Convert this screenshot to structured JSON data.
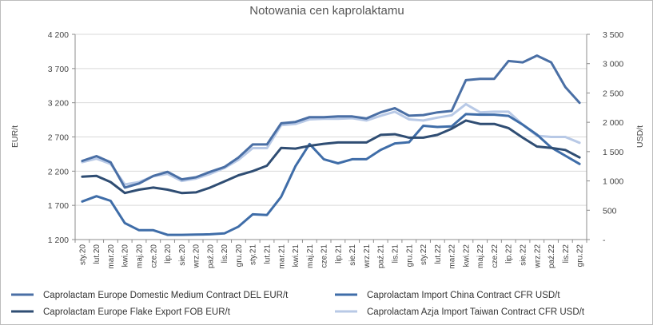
{
  "chart_data": {
    "type": "line",
    "title": "Notowania cen kaprolaktamu",
    "ylabel_left": "EUR/t",
    "ylabel_right": "USD/t",
    "ylim_left": [
      1200,
      4200
    ],
    "yticks_left": [
      "1 200",
      "1 700",
      "2 200",
      "2 700",
      "3 200",
      "3 700",
      "4 200"
    ],
    "ylim_right": [
      0,
      3500
    ],
    "yticks_right": [
      "-",
      "500",
      "1 000",
      "1 500",
      "2 000",
      "2 500",
      "3 000",
      "3 500"
    ],
    "categories": [
      "sty.20",
      "lut.20",
      "mar.20",
      "kwi.20",
      "maj.20",
      "cze.20",
      "lip.20",
      "sie.20",
      "wrz.20",
      "paź.20",
      "lis.20",
      "gru.20",
      "sty.21",
      "lut.21",
      "mar.21",
      "kwi.21",
      "maj.21",
      "cze.21",
      "lip.21",
      "sie.21",
      "wrz.21",
      "paź.21",
      "lis.21",
      "gru.21",
      "sty.22",
      "lut.22",
      "mar.22",
      "kwi.22",
      "maj.22",
      "cze.22",
      "lip.22",
      "sie.22",
      "wrz.22",
      "paź.22",
      "lis.22",
      "gru.22"
    ],
    "series": [
      {
        "name": "Caprolactam Europe Domestic Medium Contract DEL EUR/t",
        "axis": "left",
        "color": "#4a6fa5",
        "values": [
          2350,
          2420,
          2330,
          1960,
          2020,
          2130,
          2190,
          2080,
          2110,
          2190,
          2260,
          2400,
          2590,
          2590,
          2900,
          2920,
          2990,
          2990,
          3000,
          3000,
          2970,
          3060,
          3120,
          3010,
          3020,
          3060,
          3080,
          3530,
          3550,
          3550,
          3810,
          3790,
          3890,
          3790,
          3430,
          3200
        ]
      },
      {
        "name": "Caprolactam Import China Contract CFR USD/t",
        "axis": "right",
        "color": "#3f6da8",
        "values": [
          650,
          740,
          660,
          280,
          160,
          160,
          80,
          80,
          85,
          90,
          105,
          220,
          430,
          420,
          730,
          1250,
          1630,
          1370,
          1300,
          1370,
          1370,
          1530,
          1640,
          1660,
          1940,
          1920,
          1930,
          2140,
          2130,
          2130,
          2110,
          1960,
          1790,
          1570,
          1430,
          1290
        ]
      },
      {
        "name": "Caprolactam Europe Flake Export FOB EUR/t",
        "axis": "left",
        "color": "#2f4d73",
        "values": [
          2120,
          2130,
          2040,
          1880,
          1930,
          1960,
          1930,
          1880,
          1890,
          1960,
          2050,
          2140,
          2200,
          2280,
          2540,
          2530,
          2570,
          2600,
          2620,
          2620,
          2620,
          2730,
          2740,
          2690,
          2690,
          2730,
          2820,
          2940,
          2890,
          2890,
          2830,
          2690,
          2560,
          2540,
          2510,
          2400
        ]
      },
      {
        "name": "Caprolactam Azja Import Taiwan Contract CFR USD/t",
        "axis": "right",
        "color": "#b8c9e6",
        "values": [
          1320,
          1380,
          1290,
          940,
          980,
          1080,
          1120,
          1000,
          1040,
          1120,
          1220,
          1360,
          1560,
          1560,
          1950,
          1970,
          2050,
          2060,
          2060,
          2070,
          2030,
          2110,
          2180,
          2050,
          2030,
          2080,
          2120,
          2310,
          2170,
          2180,
          2180,
          1960,
          1770,
          1750,
          1750,
          1650
        ]
      }
    ],
    "grid": "horizontal",
    "legend_position": "bottom"
  }
}
